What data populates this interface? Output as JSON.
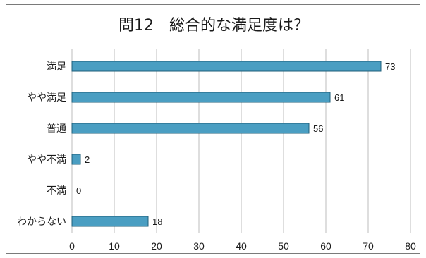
{
  "chart_data": {
    "type": "bar",
    "orientation": "horizontal",
    "title": "問12　総合的な満足度は？",
    "categories": [
      "満足",
      "やや満足",
      "普通",
      "やや不満",
      "不満",
      "わからない"
    ],
    "values": [
      73,
      61,
      56,
      2,
      0,
      18
    ],
    "data_labels": [
      "73",
      "61",
      "56",
      "2",
      "0",
      "18"
    ],
    "xlabel": "",
    "ylabel": "",
    "xlim": [
      0,
      80
    ],
    "x_ticks": [
      0,
      10,
      20,
      30,
      40,
      50,
      60,
      70,
      80
    ],
    "x_tick_labels": [
      "0",
      "10",
      "20",
      "30",
      "40",
      "50",
      "60",
      "70",
      "80"
    ],
    "grid": true,
    "legend": "none",
    "bar_color": "#4a9ec2",
    "bar_border_color": "#1f5f7a",
    "grid_color": "#bdbdbd"
  }
}
